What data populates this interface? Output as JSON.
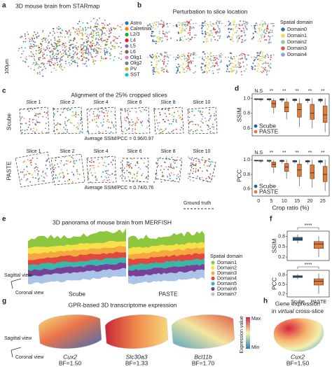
{
  "panels": {
    "a": {
      "label": "a",
      "title": "3D mouse brain from STARmap",
      "scale": "100μm",
      "legend": [
        {
          "name": "Astro",
          "color": "#1f77b4"
        },
        {
          "name": "Calretinin",
          "color": "#ff7f0e"
        },
        {
          "name": "L2/3",
          "color": "#2ca02c"
        },
        {
          "name": "L4",
          "color": "#d62728"
        },
        {
          "name": "L5",
          "color": "#9467bd"
        },
        {
          "name": "L6",
          "color": "#8c564b"
        },
        {
          "name": "Olig1",
          "color": "#e377c2"
        },
        {
          "name": "Olig2",
          "color": "#7f7f7f"
        },
        {
          "name": "PV",
          "color": "#bcbd22"
        },
        {
          "name": "SST",
          "color": "#17becf"
        }
      ]
    },
    "b": {
      "label": "b",
      "title": "Perturbation to slice location",
      "legend_title": "Spatial domain",
      "legend": [
        {
          "name": "Domain0",
          "color": "#3a6ea5"
        },
        {
          "name": "Domain1",
          "color": "#f2d35b"
        },
        {
          "name": "Domain2",
          "color": "#8fc9a8"
        },
        {
          "name": "Domain3",
          "color": "#d9534f"
        },
        {
          "name": "Domain4",
          "color": "#8aa6c8"
        }
      ]
    },
    "c": {
      "label": "c",
      "title": "Alignment of the 25% cropped slices",
      "rows": [
        {
          "method": "Scube",
          "slices": [
            "Slice 1",
            "Slice 2",
            "Slice 4",
            "Slice 6",
            "Slice 8",
            "Slice 10"
          ],
          "score": "Average SSIM/PCC = 0.96/0.97"
        },
        {
          "method": "PASTE",
          "slices": [
            "Slice 1",
            "Slice 2",
            "Slice 4",
            "Slice 6",
            "Slice 8",
            "Slice 10"
          ],
          "score": "Average SSIM/PCC = 0.74/0.76"
        }
      ],
      "ground_truth": "Ground truth"
    },
    "d": {
      "label": "d"
    },
    "e": {
      "label": "e",
      "title": "3D panorama of mouse brain from MERFISH",
      "methods": [
        "Scube",
        "PASTE"
      ],
      "views": [
        "Sagittal view",
        "Coronal view"
      ],
      "legend_title": "Spatial domain",
      "legend": [
        {
          "name": "Domain1",
          "color": "#8dc63f"
        },
        {
          "name": "Domain2",
          "color": "#f7e14a"
        },
        {
          "name": "Domain3",
          "color": "#f5a742"
        },
        {
          "name": "Domain4",
          "color": "#e0483d"
        },
        {
          "name": "Domain5",
          "color": "#3cb6a8"
        },
        {
          "name": "Domain6",
          "color": "#7a3f98"
        },
        {
          "name": "Domain7",
          "color": "#a9c4e6"
        }
      ]
    },
    "f": {
      "label": "f"
    },
    "g": {
      "label": "g",
      "title": "GPR-based 3D transcriptome expression",
      "genes": [
        {
          "name": "Cux2",
          "bf": "BF=1.50"
        },
        {
          "name": "Slc30a3",
          "bf": "BF=1.33"
        },
        {
          "name": "Bcl11b",
          "bf": "BF=1.70"
        }
      ],
      "views": [
        "Sagittal view",
        "Coronal view"
      ],
      "colorbar": {
        "title": "Expression value",
        "max": "Max",
        "min": "Min"
      }
    },
    "h": {
      "label": "h",
      "title_parts": [
        "Gene expression",
        "in",
        "virtual",
        "cross-slice"
      ],
      "gene": "Cux2",
      "bf": "BF=1.50"
    }
  },
  "chart_data": [
    {
      "type": "box",
      "ylabel": "SSIM",
      "ylim": [
        0.5,
        1.06
      ],
      "yticks": [
        0.6,
        0.8,
        {
          "value": 1,
          "label": "1.0"
        }
      ],
      "significance": [
        "N.S",
        "**",
        "**",
        "**",
        "**",
        "**"
      ],
      "legend": "lower left",
      "series": [
        {
          "name": "Scube",
          "color": "#2f5f8f",
          "boxes": [
            {
              "min": 0.97,
              "q1": 0.985,
              "median": 0.99,
              "q3": 0.995,
              "max": 1
            },
            {
              "min": 0.96,
              "q1": 0.98,
              "median": 0.99,
              "q3": 0.995,
              "max": 1
            },
            {
              "min": 0.95,
              "q1": 0.975,
              "median": 0.985,
              "q3": 0.995,
              "max": 1
            },
            {
              "min": 0.95,
              "q1": 0.97,
              "median": 0.985,
              "q3": 0.99,
              "max": 1
            },
            {
              "min": 0.94,
              "q1": 0.97,
              "median": 0.98,
              "q3": 0.99,
              "max": 1
            },
            {
              "min": 0.94,
              "q1": 0.965,
              "median": 0.98,
              "q3": 0.99,
              "max": 1
            }
          ]
        },
        {
          "name": "PASTE",
          "color": "#e07b39",
          "boxes": [
            {
              "min": 0.96,
              "q1": 0.98,
              "median": 0.99,
              "q3": 0.995,
              "max": 1
            },
            {
              "min": 0.8,
              "q1": 0.88,
              "median": 0.93,
              "q3": 0.97,
              "max": 1
            },
            {
              "min": 0.72,
              "q1": 0.82,
              "median": 0.88,
              "q3": 0.95,
              "max": 1
            },
            {
              "min": 0.62,
              "q1": 0.75,
              "median": 0.85,
              "q3": 0.93,
              "max": 1
            },
            {
              "min": 0.6,
              "q1": 0.72,
              "median": 0.8,
              "q3": 0.92,
              "max": 1
            },
            {
              "min": 0.55,
              "q1": 0.68,
              "median": 0.78,
              "q3": 0.9,
              "max": 1
            }
          ]
        }
      ]
    },
    {
      "type": "box",
      "ylabel": "PCC",
      "ylim": [
        0.5,
        1.06
      ],
      "yticks": [
        0.6,
        0.8,
        {
          "value": 1,
          "label": "1.0"
        }
      ],
      "significance": [
        "N.S",
        "**",
        "**",
        "**",
        "**",
        "**"
      ],
      "legend": "lower left",
      "categories": [
        "0",
        "5",
        "10",
        "15",
        "20",
        "25"
      ],
      "xlabel": "Crop ratio (%)",
      "series": [
        {
          "name": "Scube",
          "color": "#2f5f8f",
          "boxes": [
            {
              "min": 0.97,
              "q1": 0.985,
              "median": 0.99,
              "q3": 0.995,
              "max": 1
            },
            {
              "min": 0.96,
              "q1": 0.98,
              "median": 0.99,
              "q3": 0.995,
              "max": 1
            },
            {
              "min": 0.95,
              "q1": 0.975,
              "median": 0.985,
              "q3": 0.995,
              "max": 1
            },
            {
              "min": 0.95,
              "q1": 0.97,
              "median": 0.985,
              "q3": 0.99,
              "max": 1
            },
            {
              "min": 0.94,
              "q1": 0.97,
              "median": 0.98,
              "q3": 0.99,
              "max": 1
            },
            {
              "min": 0.94,
              "q1": 0.965,
              "median": 0.98,
              "q3": 0.99,
              "max": 1
            }
          ]
        },
        {
          "name": "PASTE",
          "color": "#e07b39",
          "boxes": [
            {
              "min": 0.96,
              "q1": 0.98,
              "median": 0.99,
              "q3": 0.995,
              "max": 1
            },
            {
              "min": 0.82,
              "q1": 0.9,
              "median": 0.94,
              "q3": 0.97,
              "max": 1
            },
            {
              "min": 0.74,
              "q1": 0.84,
              "median": 0.9,
              "q3": 0.95,
              "max": 1
            },
            {
              "min": 0.64,
              "q1": 0.77,
              "median": 0.86,
              "q3": 0.94,
              "max": 1
            },
            {
              "min": 0.62,
              "q1": 0.74,
              "median": 0.82,
              "q3": 0.93,
              "max": 1
            },
            {
              "min": 0.57,
              "q1": 0.7,
              "median": 0.8,
              "q3": 0.91,
              "max": 1
            }
          ]
        }
      ]
    },
    {
      "type": "box",
      "ylabel": "SSIM",
      "ylim": [
        0.1,
        0.95
      ],
      "yticks": [
        0.2,
        0.5,
        0.8
      ],
      "significance": "****",
      "colors": [
        "#2f5f8f",
        "#e07b39"
      ],
      "boxes": [
        {
          "min": 0.6,
          "q1": 0.68,
          "median": 0.72,
          "q3": 0.77,
          "max": 0.85
        },
        {
          "min": 0.2,
          "q1": 0.45,
          "median": 0.58,
          "q3": 0.65,
          "max": 0.8
        }
      ]
    },
    {
      "type": "box",
      "ylabel": "PCC",
      "ylim": [
        0.1,
        0.95
      ],
      "yticks": [
        0.2,
        0.5,
        0.8
      ],
      "significance": "****",
      "colors": [
        "#2f5f8f",
        "#e07b39"
      ],
      "categories": [
        "Scube",
        "PASTE"
      ],
      "boxes": [
        {
          "min": 0.66,
          "q1": 0.72,
          "median": 0.75,
          "q3": 0.78,
          "max": 0.83
        },
        {
          "min": 0.2,
          "q1": 0.48,
          "median": 0.6,
          "q3": 0.68,
          "max": 0.85
        }
      ]
    }
  ]
}
